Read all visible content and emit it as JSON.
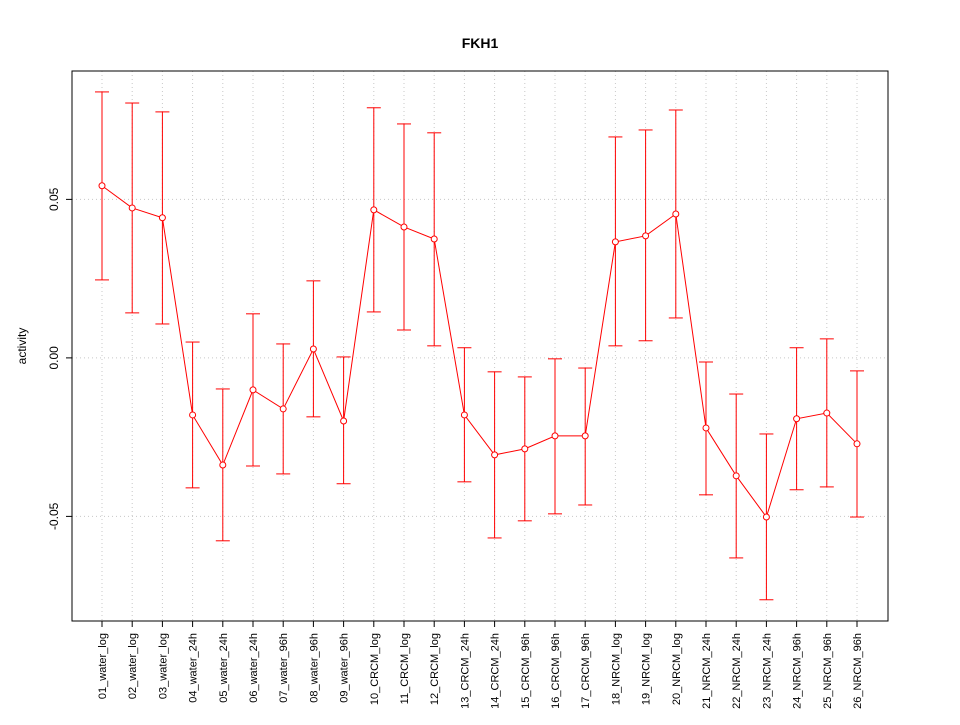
{
  "chart_data": {
    "type": "line",
    "title": "FKH1",
    "xlabel": "",
    "ylabel": "activity",
    "ylim": [
      -0.083,
      0.0905
    ],
    "yticks": [
      -0.05,
      0.0,
      0.05
    ],
    "ytick_labels": [
      "-0.05",
      "0.00",
      "0.05"
    ],
    "grid": true,
    "color": "#ff0000",
    "categories": [
      "01_water_log",
      "02_water_log",
      "03_water_log",
      "04_water_24h",
      "05_water_24h",
      "06_water_24h",
      "07_water_96h",
      "08_water_96h",
      "09_water_96h",
      "10_CRCM_log",
      "11_CRCM_log",
      "12_CRCM_log",
      "13_CRCM_24h",
      "14_CRCM_24h",
      "15_CRCM_96h",
      "16_CRCM_96h",
      "17_CRCM_96h",
      "18_NRCM_log",
      "19_NRCM_log",
      "20_NRCM_log",
      "21_NRCM_24h",
      "22_NRCM_24h",
      "23_NRCM_24h",
      "24_NRCM_96h",
      "25_NRCM_96h",
      "26_NRCM_96h"
    ],
    "values": [
      0.0543,
      0.0473,
      0.0442,
      -0.018,
      -0.0338,
      -0.0101,
      -0.0161,
      0.0028,
      -0.0199,
      0.0467,
      0.0413,
      0.0375,
      -0.018,
      -0.0306,
      -0.0287,
      -0.0246,
      -0.0246,
      0.0366,
      0.0385,
      0.0454,
      -0.0221,
      -0.0372,
      -0.0502,
      -0.0192,
      -0.0174,
      -0.0271
    ],
    "upper": [
      0.0839,
      0.0804,
      0.0776,
      0.005,
      -0.0098,
      0.0139,
      0.0044,
      0.0243,
      0.0003,
      0.0789,
      0.0738,
      0.071,
      0.0032,
      -0.0044,
      -0.006,
      -0.0003,
      -0.0032,
      0.0697,
      0.0719,
      0.0782,
      -0.0013,
      -0.0114,
      -0.024,
      0.0032,
      0.006,
      -0.0041
    ],
    "lower": [
      0.0246,
      0.0142,
      0.0107,
      -0.041,
      -0.0577,
      -0.0341,
      -0.0366,
      -0.0186,
      -0.0397,
      0.0145,
      0.0088,
      0.0038,
      -0.0391,
      -0.0568,
      -0.0514,
      -0.0492,
      -0.0464,
      0.0038,
      0.0054,
      0.0126,
      -0.0432,
      -0.0631,
      -0.0763,
      -0.0416,
      -0.0407,
      -0.0502
    ]
  }
}
